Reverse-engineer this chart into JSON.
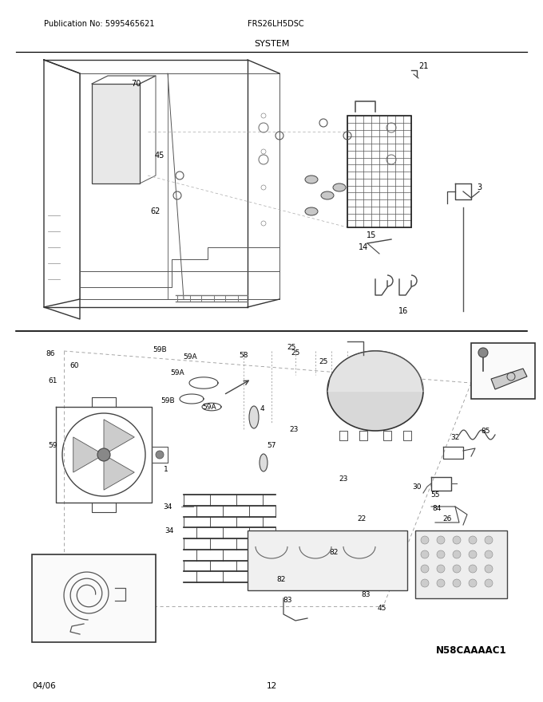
{
  "title": "SYSTEM",
  "pub_no": "Publication No: 5995465621",
  "model": "FRS26LH5DSC",
  "date": "04/06",
  "page": "12",
  "part_id": "N58CAAAAC1",
  "bg_color": "#ffffff",
  "fig_width": 6.8,
  "fig_height": 8.8,
  "dpi": 100
}
